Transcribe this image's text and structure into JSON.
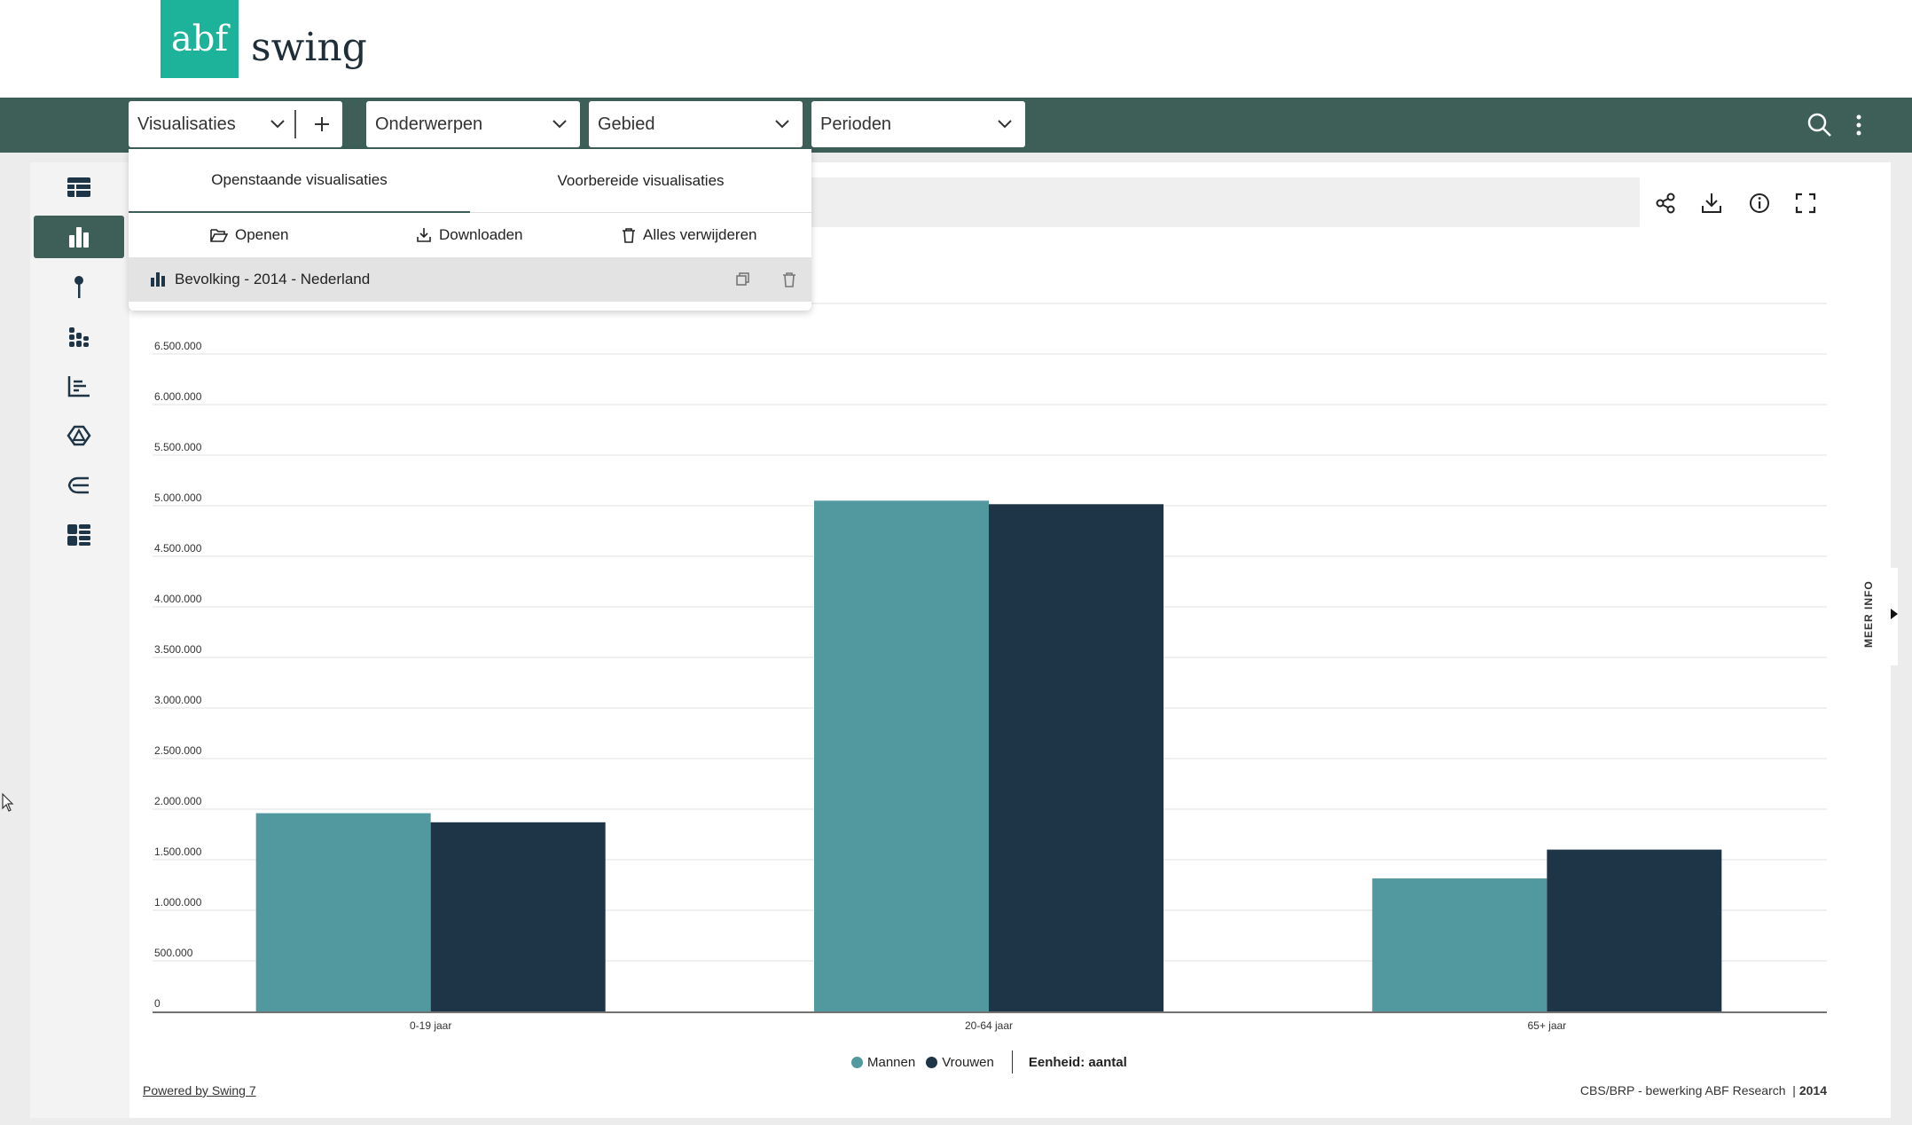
{
  "brand": {
    "logo_mark": "abf",
    "logo_text": "swing",
    "color": "#1db39a"
  },
  "colors": {
    "navbar": "#3d5f57",
    "mannen": "#52999f",
    "vrouwen": "#1e3547"
  },
  "navbar": {
    "visualisaties_label": "Visualisaties",
    "add_icon": "plus-icon",
    "onderwerpen_label": "Onderwerpen",
    "gebied_label": "Gebied",
    "perioden_label": "Perioden",
    "right_icons": [
      "search-icon",
      "more-vert-icon"
    ]
  },
  "sidebar": {
    "items": [
      {
        "icon": "table-icon",
        "active": false
      },
      {
        "icon": "bar-chart-icon",
        "active": true
      },
      {
        "icon": "map-pin-icon",
        "active": false
      },
      {
        "icon": "stacked-bar-icon",
        "active": false
      },
      {
        "icon": "line-chart-icon",
        "active": false
      },
      {
        "icon": "triangle-chart-icon",
        "active": false
      },
      {
        "icon": "sankey-icon",
        "active": false
      },
      {
        "icon": "dashboard-icon",
        "active": false
      }
    ]
  },
  "toolbar": {
    "icons": [
      "share-icon",
      "download-icon",
      "info-icon",
      "fullscreen-icon"
    ]
  },
  "popup": {
    "tabs": [
      "Openstaande visualisaties",
      "Voorbereide visualisaties"
    ],
    "active_tab": 0,
    "actions": {
      "open": "Openen",
      "download": "Downloaden",
      "delete_all": "Alles verwijderen"
    },
    "items": [
      {
        "label": "Bevolking - 2014 - Nederland"
      }
    ]
  },
  "chart_data": {
    "type": "bar",
    "categories": [
      "0-19 jaar",
      "20-64 jaar",
      "65+ jaar"
    ],
    "series": [
      {
        "name": "Mannen",
        "values": [
          1960000,
          5050000,
          1315000
        ]
      },
      {
        "name": "Vrouwen",
        "values": [
          1870000,
          5015000,
          1600000
        ]
      }
    ],
    "ylim": [
      0,
      6500000
    ],
    "yticks": [
      "0",
      "500.000",
      "1.000.000",
      "1.500.000",
      "2.000.000",
      "2.500.000",
      "3.000.000",
      "3.500.000",
      "4.000.000",
      "4.500.000",
      "5.000.000",
      "5.500.000",
      "6.000.000",
      "6.500.000"
    ],
    "grid": true,
    "legend_placement": "bottom"
  },
  "legend": {
    "unit_label": "Eenheid: aantal"
  },
  "footer": {
    "powered": "Powered by Swing 7",
    "source": "CBS/BRP - bewerking ABF Research",
    "year": "2014"
  },
  "side_tab": {
    "label": "MEER INFO"
  }
}
